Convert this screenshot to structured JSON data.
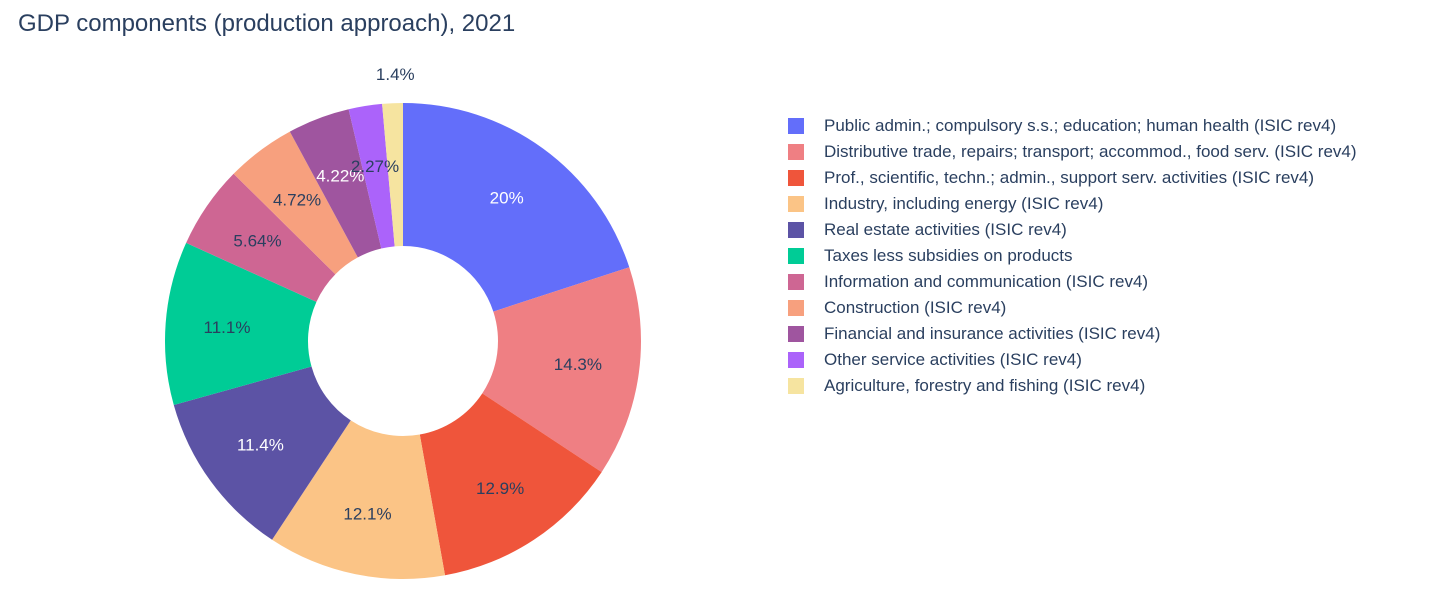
{
  "chart_data": {
    "type": "pie",
    "title": "GDP components (production approach), 2021",
    "hole": true,
    "legend_position": "right",
    "slices": [
      {
        "label": "Public admin.; compulsory s.s.; education; human health (ISIC rev4)",
        "value": 20,
        "value_text": "20%",
        "color": "#636efa",
        "text_color": "#ffffff"
      },
      {
        "label": "Distributive trade, repairs; transport; accommod., food serv. (ISIC rev4)",
        "value": 14.3,
        "value_text": "14.3%",
        "color": "#ef7f83",
        "text_color": "#2a3f5f"
      },
      {
        "label": "Prof., scientific, techn.; admin., support serv. activities (ISIC rev4)",
        "value": 12.9,
        "value_text": "12.9%",
        "color": "#ef553b",
        "text_color": "#2a3f5f"
      },
      {
        "label": "Industry, including energy (ISIC rev4)",
        "value": 12.1,
        "value_text": "12.1%",
        "color": "#fbc486",
        "text_color": "#2a3f5f"
      },
      {
        "label": "Real estate activities (ISIC rev4)",
        "value": 11.4,
        "value_text": "11.4%",
        "color": "#5c53a5",
        "text_color": "#ffffff"
      },
      {
        "label": "Taxes less subsidies on products",
        "value": 11.1,
        "value_text": "11.1%",
        "color": "#00cc96",
        "text_color": "#2a3f5f"
      },
      {
        "label": "Information and communication (ISIC rev4)",
        "value": 5.64,
        "value_text": "5.64%",
        "color": "#ce6693",
        "text_color": "#2a3f5f"
      },
      {
        "label": "Construction (ISIC rev4)",
        "value": 4.72,
        "value_text": "4.72%",
        "color": "#f7a07e",
        "text_color": "#2a3f5f"
      },
      {
        "label": "Financial and insurance activities (ISIC rev4)",
        "value": 4.22,
        "value_text": "4.22%",
        "color": "#9f559f",
        "text_color": "#ffffff"
      },
      {
        "label": "Other service activities (ISIC rev4)",
        "value": 2.27,
        "value_text": "2.27%",
        "color": "#ab63fa",
        "text_color": "#2a3f5f"
      },
      {
        "label": "Agriculture, forestry and fishing (ISIC rev4)",
        "value": 1.4,
        "value_text": "1.4%",
        "color": "#f6e4a0",
        "text_color": "#2a3f5f",
        "label_outside": true
      }
    ]
  }
}
